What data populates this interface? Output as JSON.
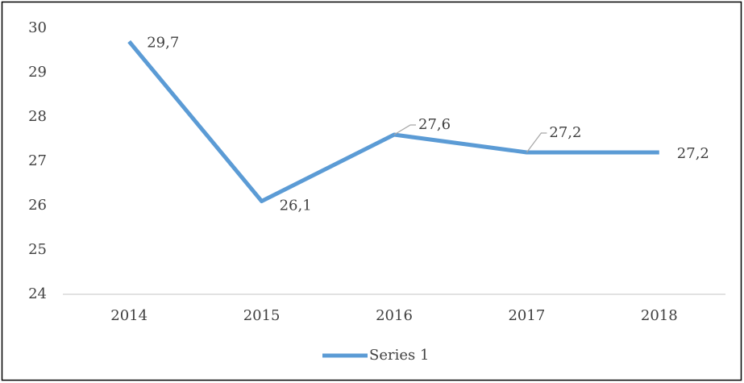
{
  "chart_data": {
    "type": "line",
    "categories": [
      "2014",
      "2015",
      "2016",
      "2017",
      "2018"
    ],
    "series": [
      {
        "name": "Series 1",
        "color": "#5b9bd5",
        "values": [
          29.7,
          26.1,
          27.6,
          27.2,
          27.2
        ],
        "value_labels": [
          "29,7",
          "26,1",
          "27,6",
          "27,2",
          "27,2"
        ]
      }
    ],
    "ylim": [
      24,
      30
    ],
    "yticks": [
      24,
      25,
      26,
      27,
      28,
      29,
      30
    ],
    "grid": false,
    "legend": "bottom"
  }
}
